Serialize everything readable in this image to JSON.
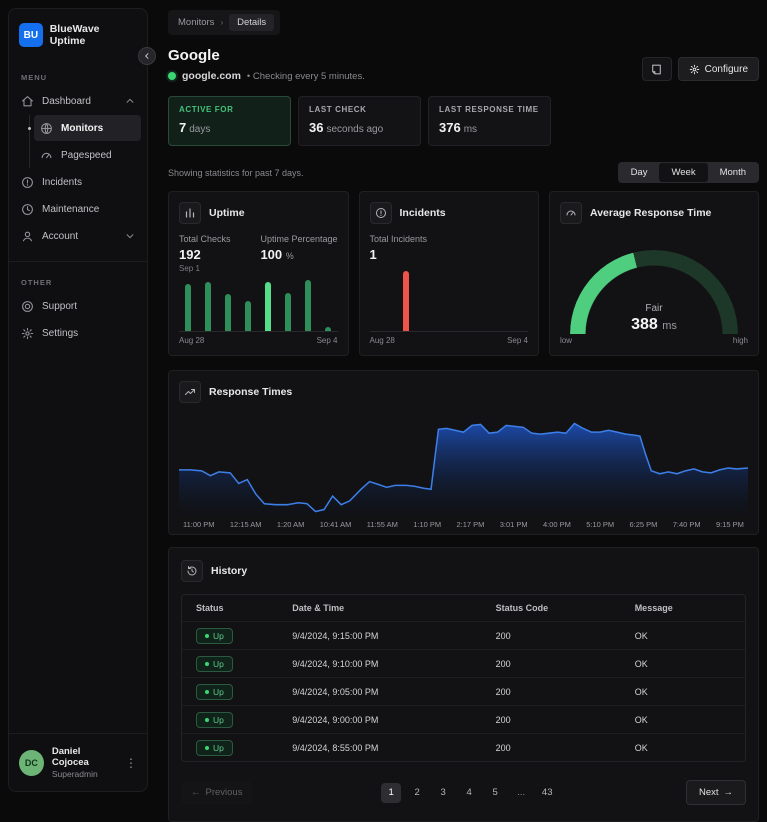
{
  "sidebar": {
    "brand": {
      "logo": "BU",
      "name": "BlueWave Uptime"
    },
    "menu_label": "MENU",
    "other_label": "OTHER",
    "menu": [
      {
        "label": "Dashboard"
      },
      {
        "label": "Monitors"
      },
      {
        "label": "Pagespeed"
      },
      {
        "label": "Incidents"
      },
      {
        "label": "Maintenance"
      },
      {
        "label": "Account"
      }
    ],
    "other": [
      {
        "label": "Support"
      },
      {
        "label": "Settings"
      }
    ],
    "user": {
      "initials": "DC",
      "name": "Daniel Cojocea",
      "role": "Superadmin"
    }
  },
  "header": {
    "breadcrumb": [
      "Monitors",
      "Details"
    ],
    "title": "Google",
    "url": "google.com",
    "checking_note": "• Checking every 5 minutes.",
    "configure_label": "Configure"
  },
  "stats": [
    {
      "label": "ACTIVE FOR",
      "value": "7",
      "unit": "days"
    },
    {
      "label": "LAST CHECK",
      "value": "36",
      "unit": "seconds ago"
    },
    {
      "label": "LAST RESPONSE TIME",
      "value": "376",
      "unit": "ms"
    }
  ],
  "stats_note": "Showing statistics for past 7 days.",
  "range_toggle": {
    "options": [
      "Day",
      "Week",
      "Month"
    ],
    "selected": "Week"
  },
  "uptime_card": {
    "title": "Uptime",
    "total_checks_label": "Total Checks",
    "total_checks": "192",
    "uptime_label": "Uptime Percentage",
    "uptime_value": "100",
    "uptime_unit": "%",
    "hover_label": "Sep 1",
    "x_start": "Aug 28",
    "x_end": "Sep 4"
  },
  "incidents_card": {
    "title": "Incidents",
    "total_label": "Total Incidents",
    "total": "1",
    "x_start": "Aug 28",
    "x_end": "Sep 4"
  },
  "gauge_card": {
    "title": "Average Response Time",
    "rating": "Fair",
    "value": "388",
    "unit": "ms",
    "low_label": "low",
    "high_label": "high"
  },
  "response_card": {
    "title": "Response Times"
  },
  "history": {
    "title": "History",
    "columns": [
      "Status",
      "Date & Time",
      "Status Code",
      "Message"
    ],
    "rows": [
      {
        "status": "Up",
        "datetime": "9/4/2024, 9:15:00 PM",
        "code": "200",
        "message": "OK"
      },
      {
        "status": "Up",
        "datetime": "9/4/2024, 9:10:00 PM",
        "code": "200",
        "message": "OK"
      },
      {
        "status": "Up",
        "datetime": "9/4/2024, 9:05:00 PM",
        "code": "200",
        "message": "OK"
      },
      {
        "status": "Up",
        "datetime": "9/4/2024, 9:00:00 PM",
        "code": "200",
        "message": "OK"
      },
      {
        "status": "Up",
        "datetime": "9/4/2024, 8:55:00 PM",
        "code": "200",
        "message": "OK"
      }
    ],
    "pagination": {
      "previous": "Previous",
      "next": "Next",
      "pages": [
        "1",
        "2",
        "3",
        "4",
        "5",
        "...",
        "43"
      ],
      "current": "1"
    }
  },
  "chart_data": [
    {
      "type": "bar",
      "name": "uptime-checks",
      "title": "Uptime",
      "categories": [
        "Aug 28",
        "Aug 29",
        "Aug 30",
        "Aug 31",
        "Sep 1",
        "Sep 2",
        "Sep 3",
        "Sep 4"
      ],
      "values": [
        87,
        91,
        69,
        56,
        90,
        71,
        94,
        7
      ],
      "value_unit": "relative-height-percent",
      "highlight_index": 4,
      "bar_color": "#2e8f5b",
      "highlight_color": "#55dd8a"
    },
    {
      "type": "bar",
      "name": "incidents",
      "title": "Incidents",
      "categories_range": [
        "Aug 28",
        "Sep 4"
      ],
      "bars": [
        {
          "x_percent": 21,
          "height_percent": 93,
          "value": 1
        }
      ],
      "bar_color": "#ee5449"
    },
    {
      "type": "gauge",
      "name": "average-response-time",
      "title": "Average Response Time",
      "value_ms": 388,
      "rating": "Fair",
      "percent": 42,
      "color_active": "#4fce7f",
      "color_track": "#1d3829",
      "min_label": "low",
      "max_label": "high"
    },
    {
      "type": "area",
      "name": "response-times",
      "title": "Response Times",
      "x_labels": [
        "11:00 PM",
        "12:15 AM",
        "1:20 AM",
        "10:41 AM",
        "11:55 AM",
        "1:10 PM",
        "2:17 PM",
        "3:01 PM",
        "4:00 PM",
        "5:10 PM",
        "6:25 PM",
        "7:40 PM",
        "9:15 PM"
      ],
      "y_unit": "relative-response-time-percent",
      "points": [
        [
          0,
          44
        ],
        [
          2,
          44
        ],
        [
          4,
          43
        ],
        [
          5.5,
          38
        ],
        [
          7,
          42
        ],
        [
          9,
          41
        ],
        [
          10.5,
          30
        ],
        [
          12,
          34
        ],
        [
          13.5,
          19
        ],
        [
          15,
          9
        ],
        [
          17,
          8
        ],
        [
          19,
          8
        ],
        [
          21,
          10
        ],
        [
          22.5,
          9
        ],
        [
          24,
          1
        ],
        [
          25.5,
          3
        ],
        [
          27,
          17
        ],
        [
          28.5,
          8
        ],
        [
          30,
          12
        ],
        [
          32,
          24
        ],
        [
          33.5,
          32
        ],
        [
          35,
          29
        ],
        [
          36.5,
          26
        ],
        [
          38,
          28
        ],
        [
          40,
          28
        ],
        [
          41.5,
          27
        ],
        [
          43,
          25
        ],
        [
          44.3,
          24
        ],
        [
          45,
          58
        ],
        [
          45.6,
          86
        ],
        [
          47,
          87
        ],
        [
          48.5,
          85
        ],
        [
          50,
          83
        ],
        [
          51.5,
          90
        ],
        [
          53,
          91
        ],
        [
          54.5,
          82
        ],
        [
          56,
          83
        ],
        [
          57.5,
          90
        ],
        [
          59,
          89
        ],
        [
          60.5,
          88
        ],
        [
          62,
          82
        ],
        [
          63.5,
          81
        ],
        [
          65,
          82
        ],
        [
          66.5,
          83
        ],
        [
          68,
          82
        ],
        [
          69.5,
          92
        ],
        [
          71,
          87
        ],
        [
          72.5,
          83
        ],
        [
          74,
          83
        ],
        [
          75.5,
          85
        ],
        [
          77,
          83
        ],
        [
          78.5,
          81
        ],
        [
          80,
          80
        ],
        [
          81,
          79
        ],
        [
          82,
          60
        ],
        [
          83,
          43
        ],
        [
          84.5,
          40
        ],
        [
          86,
          42
        ],
        [
          87.5,
          40
        ],
        [
          89,
          43
        ],
        [
          90.5,
          45
        ],
        [
          92,
          42
        ],
        [
          93.5,
          41
        ],
        [
          95,
          44
        ],
        [
          96.5,
          46
        ],
        [
          98,
          45
        ],
        [
          100,
          46
        ]
      ],
      "line_color": "#3d7fe8",
      "fill_top": "#1e54c4",
      "fill_bottom": "#0b1322"
    }
  ]
}
